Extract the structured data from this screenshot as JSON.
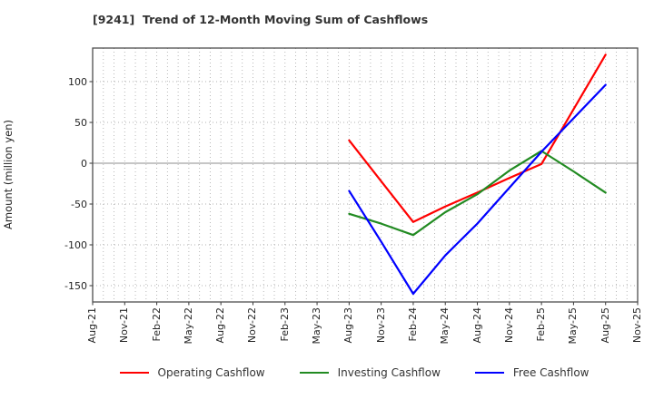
{
  "title": "[9241]  Trend of 12-Month Moving Sum of Cashflows",
  "y_axis_label": "Amount (million yen)",
  "legend": [
    {
      "label": "Operating Cashflow",
      "color": "#ff0000"
    },
    {
      "label": "Investing Cashflow",
      "color": "#228b22"
    },
    {
      "label": "Free Cashflow",
      "color": "#0000ff"
    }
  ],
  "chart_data": {
    "type": "line",
    "title": "[9241]  Trend of 12-Month Moving Sum of Cashflows",
    "xlabel": "",
    "ylabel": "Amount (million yen)",
    "categories": [
      "Aug-21",
      "Nov-21",
      "Feb-22",
      "May-22",
      "Aug-22",
      "Nov-22",
      "Feb-23",
      "May-23",
      "Aug-23",
      "Nov-23",
      "Feb-24",
      "May-24",
      "Aug-24",
      "Nov-24",
      "Feb-25",
      "May-25",
      "Aug-25",
      "Nov-25"
    ],
    "yticks": [
      100,
      50,
      0,
      -50,
      -100,
      -150
    ],
    "ylim": [
      -170,
      141
    ],
    "grid": true,
    "grid_style": "dotted",
    "minor_x_gridlines_per_quarter": 3,
    "legend_position": "bottom",
    "series": [
      {
        "name": "Operating Cashflow",
        "color": "#ff0000",
        "values": [
          null,
          null,
          null,
          null,
          null,
          null,
          null,
          null,
          28,
          -22,
          -72,
          -53,
          -36,
          -18,
          -1,
          66,
          133,
          null
        ]
      },
      {
        "name": "Investing Cashflow",
        "color": "#228b22",
        "values": [
          null,
          null,
          null,
          null,
          null,
          null,
          null,
          null,
          -62,
          -74,
          -88,
          -60,
          -38,
          -9,
          15,
          -10,
          -36,
          null
        ]
      },
      {
        "name": "Free Cashflow",
        "color": "#0000ff",
        "values": [
          null,
          null,
          null,
          null,
          null,
          null,
          null,
          null,
          -34,
          -96,
          -160,
          -113,
          -74,
          -30,
          14,
          55,
          96,
          null
        ]
      }
    ]
  },
  "colors": {
    "grid": "#b0b0b0",
    "zero_line": "#8c8c8c",
    "border": "#4d4d4d",
    "tick": "#333333"
  }
}
